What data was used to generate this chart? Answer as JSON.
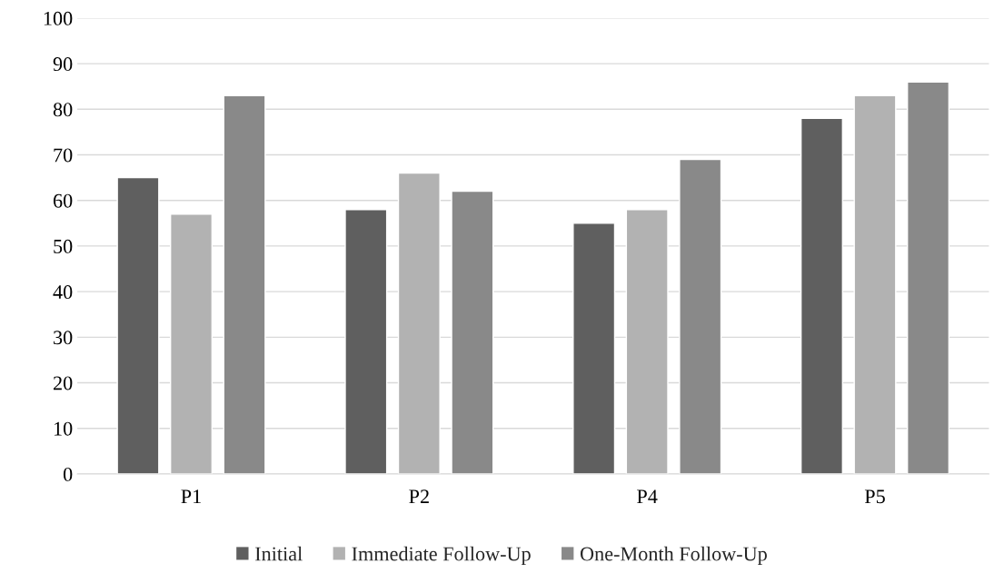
{
  "chart_data": {
    "type": "bar",
    "categories": [
      "P1",
      "P2",
      "P4",
      "P5"
    ],
    "series": [
      {
        "name": "Initial",
        "color": "#5f5f5f",
        "values": [
          65,
          58,
          55,
          78
        ]
      },
      {
        "name": "Immediate Follow-Up",
        "color": "#b2b2b2",
        "values": [
          57,
          66,
          58,
          83
        ]
      },
      {
        "name": "One-Month Follow-Up",
        "color": "#898989",
        "values": [
          83,
          62,
          69,
          86
        ]
      }
    ],
    "ylim": [
      0,
      100
    ],
    "yticks": [
      0,
      10,
      20,
      30,
      40,
      50,
      60,
      70,
      80,
      90,
      100
    ],
    "grid": "y",
    "legend": "bottom"
  }
}
